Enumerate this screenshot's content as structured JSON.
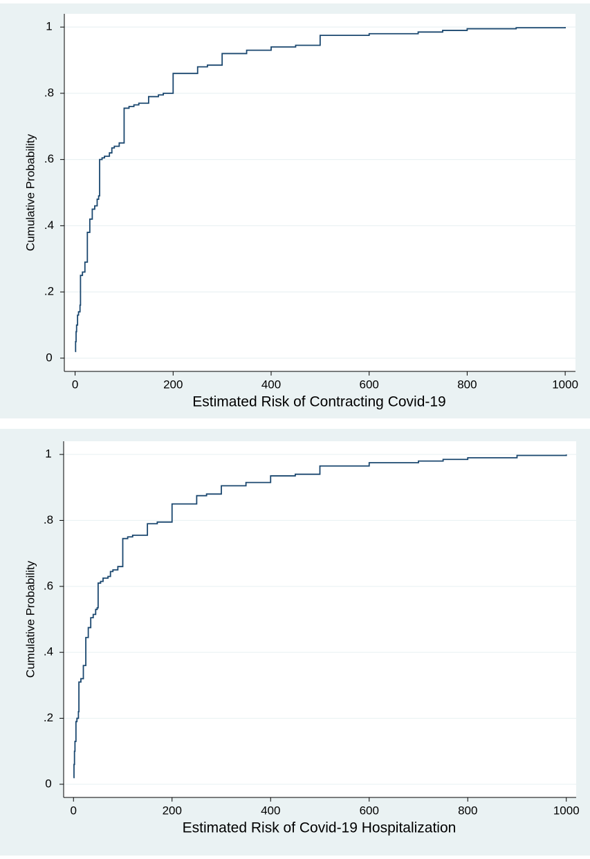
{
  "chart_data": [
    {
      "type": "step",
      "x_label": "Estimated Risk of Contracting Covid-19",
      "y_label": "Cumulative Probability",
      "color": "#1a476f",
      "grid": true,
      "x": [
        0,
        1,
        2,
        3,
        5,
        7,
        10,
        11,
        15,
        20,
        25,
        30,
        35,
        40,
        45,
        48,
        50,
        55,
        60,
        70,
        75,
        80,
        90,
        100,
        110,
        120,
        130,
        150,
        170,
        180,
        200,
        250,
        270,
        300,
        350,
        400,
        450,
        500,
        600,
        700,
        750,
        800,
        900,
        1000
      ],
      "y": [
        0.02,
        0.05,
        0.08,
        0.1,
        0.13,
        0.14,
        0.16,
        0.25,
        0.26,
        0.29,
        0.38,
        0.42,
        0.45,
        0.46,
        0.48,
        0.49,
        0.6,
        0.605,
        0.61,
        0.62,
        0.635,
        0.64,
        0.65,
        0.755,
        0.76,
        0.765,
        0.77,
        0.79,
        0.795,
        0.8,
        0.86,
        0.88,
        0.885,
        0.92,
        0.93,
        0.94,
        0.945,
        0.975,
        0.98,
        0.985,
        0.99,
        0.995,
        0.998,
        1
      ],
      "xlim": [
        -22,
        1021
      ],
      "ylim": [
        -0.04,
        1.04
      ],
      "xticks": [
        0,
        200,
        400,
        600,
        800,
        1000
      ],
      "yticks": [
        0,
        {
          "value": 0.2,
          "label": ".2"
        },
        {
          "value": 0.4,
          "label": ".4"
        },
        {
          "value": 0.6,
          "label": ".6"
        },
        {
          "value": 0.8,
          "label": ".8"
        },
        1
      ]
    },
    {
      "type": "step",
      "x_label": "Estimated Risk of Covid-19 Hospitalization",
      "y_label": "Cumulative Probability",
      "color": "#1a476f",
      "grid": true,
      "x": [
        0,
        1,
        2,
        3,
        5,
        7,
        10,
        11,
        15,
        20,
        25,
        30,
        35,
        40,
        45,
        48,
        50,
        55,
        60,
        70,
        75,
        80,
        90,
        100,
        110,
        120,
        150,
        170,
        200,
        250,
        270,
        300,
        350,
        400,
        450,
        500,
        600,
        700,
        750,
        800,
        900,
        1000
      ],
      "y": [
        0.02,
        0.06,
        0.1,
        0.13,
        0.19,
        0.2,
        0.22,
        0.31,
        0.32,
        0.36,
        0.445,
        0.475,
        0.505,
        0.515,
        0.53,
        0.535,
        0.61,
        0.615,
        0.625,
        0.63,
        0.645,
        0.65,
        0.66,
        0.745,
        0.75,
        0.755,
        0.79,
        0.795,
        0.85,
        0.875,
        0.88,
        0.905,
        0.915,
        0.935,
        0.94,
        0.965,
        0.975,
        0.98,
        0.985,
        0.99,
        0.997,
        1
      ],
      "xlim": [
        -20,
        1020
      ],
      "ylim": [
        -0.04,
        1.04
      ],
      "xticks": [
        0,
        200,
        400,
        600,
        800,
        1000
      ],
      "yticks": [
        0,
        {
          "value": 0.2,
          "label": ".2"
        },
        {
          "value": 0.4,
          "label": ".4"
        },
        {
          "value": 0.6,
          "label": ".6"
        },
        {
          "value": 0.8,
          "label": ".8"
        },
        1
      ]
    }
  ]
}
